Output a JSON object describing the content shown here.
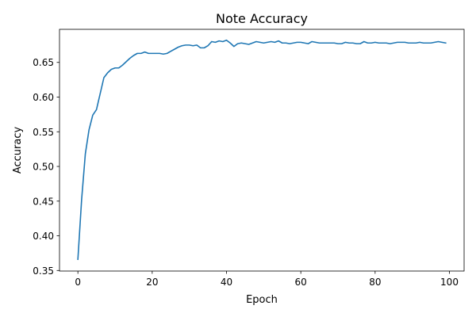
{
  "chart_data": {
    "type": "line",
    "title": "Note Accuracy",
    "xlabel": "Epoch",
    "ylabel": "Accuracy",
    "xlim": [
      -4.95,
      103.95
    ],
    "ylim": [
      0.3492,
      0.6977
    ],
    "xticks": [
      0,
      20,
      40,
      60,
      80,
      100
    ],
    "yticks": [
      0.35,
      0.4,
      0.45,
      0.5,
      0.55,
      0.6,
      0.65
    ],
    "xtick_labels": [
      "0",
      "20",
      "40",
      "60",
      "80",
      "100"
    ],
    "ytick_labels": [
      "0.35",
      "0.40",
      "0.45",
      "0.50",
      "0.55",
      "0.60",
      "0.65"
    ],
    "grid": false,
    "series": [
      {
        "color": "#1f77b4",
        "x": [
          0,
          1,
          2,
          3,
          4,
          5,
          6,
          7,
          8,
          9,
          10,
          11,
          12,
          13,
          14,
          15,
          16,
          17,
          18,
          19,
          20,
          21,
          22,
          23,
          24,
          25,
          26,
          27,
          28,
          29,
          30,
          31,
          32,
          33,
          34,
          35,
          36,
          37,
          38,
          39,
          40,
          41,
          42,
          43,
          44,
          45,
          46,
          47,
          48,
          49,
          50,
          51,
          52,
          53,
          54,
          55,
          56,
          57,
          58,
          59,
          60,
          61,
          62,
          63,
          64,
          65,
          66,
          67,
          68,
          69,
          70,
          71,
          72,
          73,
          74,
          75,
          76,
          77,
          78,
          79,
          80,
          81,
          82,
          83,
          84,
          85,
          86,
          87,
          88,
          89,
          90,
          91,
          92,
          93,
          94,
          95,
          96,
          97,
          98,
          99
        ],
        "y": [
          0.366,
          0.452,
          0.518,
          0.553,
          0.574,
          0.582,
          0.605,
          0.628,
          0.635,
          0.64,
          0.642,
          0.642,
          0.646,
          0.651,
          0.656,
          0.66,
          0.663,
          0.663,
          0.665,
          0.663,
          0.663,
          0.663,
          0.663,
          0.662,
          0.663,
          0.666,
          0.669,
          0.672,
          0.674,
          0.675,
          0.675,
          0.674,
          0.675,
          0.671,
          0.671,
          0.674,
          0.68,
          0.679,
          0.681,
          0.68,
          0.682,
          0.678,
          0.673,
          0.677,
          0.678,
          0.677,
          0.676,
          0.678,
          0.68,
          0.679,
          0.678,
          0.679,
          0.68,
          0.679,
          0.681,
          0.678,
          0.678,
          0.677,
          0.678,
          0.679,
          0.679,
          0.678,
          0.677,
          0.68,
          0.679,
          0.678,
          0.678,
          0.678,
          0.678,
          0.678,
          0.677,
          0.677,
          0.679,
          0.678,
          0.678,
          0.677,
          0.677,
          0.68,
          0.678,
          0.678,
          0.679,
          0.678,
          0.678,
          0.678,
          0.677,
          0.678,
          0.679,
          0.679,
          0.679,
          0.678,
          0.678,
          0.678,
          0.679,
          0.678,
          0.678,
          0.678,
          0.679,
          0.68,
          0.679,
          0.678
        ]
      }
    ]
  }
}
